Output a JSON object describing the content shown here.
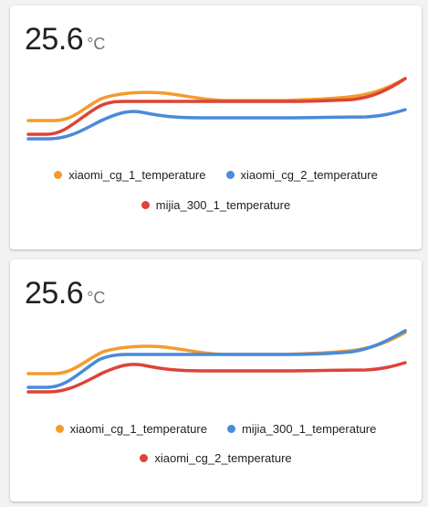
{
  "cards": [
    {
      "value": "25.6",
      "unit": "°C",
      "legend": [
        {
          "name": "xiaomi_cg_1_temperature",
          "color": "#f59a2e"
        },
        {
          "name": "xiaomi_cg_2_temperature",
          "color": "#4a8ad9"
        },
        {
          "name": "mijia_300_1_temperature",
          "color": "#dc4437"
        }
      ]
    },
    {
      "value": "25.6",
      "unit": "°C",
      "legend": [
        {
          "name": "xiaomi_cg_1_temperature",
          "color": "#f59a2e"
        },
        {
          "name": "mijia_300_1_temperature",
          "color": "#4a8ad9"
        },
        {
          "name": "xiaomi_cg_2_temperature",
          "color": "#dc4437"
        }
      ]
    }
  ]
}
